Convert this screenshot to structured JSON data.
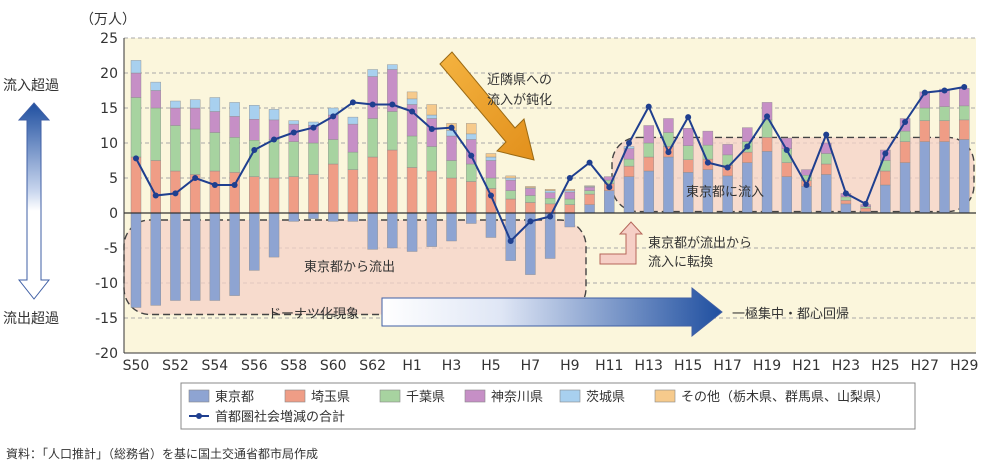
{
  "chart_data": {
    "type": "bar",
    "subtype": "stacked-bar-with-line",
    "unit_label": "（万人）",
    "ylim": [
      -20,
      25
    ],
    "yticks": [
      25,
      20,
      15,
      10,
      5,
      0,
      -5,
      -10,
      -15,
      -20
    ],
    "grid": true,
    "legend_position": "bottom",
    "categories": [
      "S50",
      "S51",
      "S52",
      "S53",
      "S54",
      "S55",
      "S56",
      "S57",
      "S58",
      "S59",
      "S60",
      "S61",
      "S62",
      "S63",
      "H1",
      "H2",
      "H3",
      "H4",
      "H5",
      "H6",
      "H7",
      "H8",
      "H9",
      "H10",
      "H11",
      "H12",
      "H13",
      "H14",
      "H15",
      "H16",
      "H17",
      "H18",
      "H19",
      "H20",
      "H21",
      "H22",
      "H23",
      "H24",
      "H25",
      "H26",
      "H27",
      "H28",
      "H29"
    ],
    "tick_labels": [
      "S50",
      "",
      "S52",
      "",
      "S54",
      "",
      "S56",
      "",
      "S58",
      "",
      "S60",
      "",
      "S62",
      "",
      "H1",
      "",
      "H3",
      "",
      "H5",
      "",
      "H7",
      "",
      "H9",
      "",
      "H11",
      "",
      "H13",
      "",
      "H15",
      "",
      "H17",
      "",
      "H19",
      "",
      "H21",
      "",
      "H23",
      "",
      "H25",
      "",
      "H27",
      "",
      "H29"
    ],
    "series": [
      {
        "name": "東京都",
        "color": "#8ea4d2",
        "values": [
          -13.5,
          -13.2,
          -12.5,
          -12.5,
          -12.5,
          -11.8,
          -8.2,
          -6.3,
          -1.2,
          -0.8,
          -1.2,
          -1.2,
          -5.2,
          -5.0,
          -5.5,
          -4.8,
          -4.0,
          -1.5,
          -3.5,
          -6.8,
          -8.8,
          -6.5,
          -2.0,
          1.2,
          3.2,
          5.2,
          6.0,
          8.0,
          5.8,
          6.2,
          5.3,
          7.2,
          8.8,
          5.2,
          3.8,
          5.5,
          1.3,
          0.2,
          4.0,
          7.2,
          10.2,
          10.2,
          10.5
        ]
      },
      {
        "name": "埼玉県",
        "color": "#ef9d86",
        "values": [
          8.0,
          7.5,
          6.0,
          5.5,
          6.0,
          5.8,
          5.2,
          5.0,
          5.2,
          5.5,
          7.0,
          6.2,
          8.0,
          9.0,
          6.5,
          6.0,
          5.0,
          4.5,
          3.5,
          2.0,
          1.5,
          1.3,
          1.2,
          1.5,
          1.0,
          1.5,
          2.0,
          1.5,
          1.8,
          1.5,
          1.5,
          1.5,
          2.0,
          2.0,
          0.8,
          1.5,
          0.5,
          0.5,
          2.0,
          3.0,
          3.0,
          3.0,
          2.8
        ]
      },
      {
        "name": "千葉県",
        "color": "#a7d3a0",
        "values": [
          8.5,
          7.5,
          6.5,
          6.5,
          5.5,
          5.0,
          5.2,
          5.5,
          5.0,
          4.5,
          3.5,
          2.5,
          5.5,
          5.5,
          4.5,
          3.5,
          2.5,
          2.5,
          1.5,
          1.2,
          1.0,
          0.8,
          0.8,
          0.5,
          0.5,
          1.0,
          2.0,
          2.0,
          2.0,
          2.0,
          1.5,
          1.5,
          2.5,
          2.0,
          0.8,
          1.5,
          0.5,
          0.2,
          1.5,
          1.5,
          1.8,
          2.0,
          2.0
        ]
      },
      {
        "name": "神奈川県",
        "color": "#c68fc6",
        "values": [
          3.5,
          2.5,
          2.5,
          3.0,
          3.0,
          3.0,
          3.0,
          2.8,
          2.5,
          2.5,
          3.5,
          4.0,
          6.0,
          6.0,
          4.5,
          4.0,
          3.5,
          3.5,
          2.5,
          1.5,
          1.0,
          0.8,
          1.0,
          0.5,
          0.5,
          1.5,
          2.5,
          2.0,
          2.5,
          2.0,
          1.5,
          2.0,
          2.5,
          1.5,
          0.8,
          1.5,
          0.5,
          0.3,
          1.5,
          1.8,
          2.3,
          2.5,
          2.5
        ]
      },
      {
        "name": "茨城県",
        "color": "#a8d0ef",
        "values": [
          1.8,
          1.2,
          1.0,
          1.2,
          2.0,
          2.0,
          2.0,
          1.5,
          0.5,
          0.5,
          1.0,
          1.0,
          1.0,
          0.7,
          0.8,
          0.5,
          0.8,
          0.8,
          0.5,
          0.3,
          0.1,
          0.3,
          0.2,
          0.1,
          0.0,
          0.3,
          0.0,
          0.0,
          0.0,
          0.0,
          0.0,
          0.0,
          0.0,
          0.0,
          0.0,
          0.0,
          0.0,
          0.0,
          0.0,
          0.0,
          0.0,
          0.0,
          0.0
        ]
      },
      {
        "name": "その他（栃木県、群馬県、山梨県）",
        "color": "#f6ca8c",
        "values": [
          0.0,
          0.0,
          0.0,
          0.0,
          0.0,
          0.0,
          0.0,
          0.0,
          0.0,
          0.0,
          0.0,
          0.0,
          0.0,
          0.0,
          1.0,
          1.5,
          1.0,
          1.5,
          0.5,
          0.3,
          0.2,
          0.2,
          0.2,
          0.1,
          0.0,
          0.0,
          0.0,
          0.0,
          0.0,
          0.0,
          0.0,
          0.0,
          0.0,
          0.0,
          0.0,
          0.0,
          0.0,
          0.0,
          0.0,
          0.0,
          0.0,
          0.0,
          0.0
        ]
      }
    ],
    "line": {
      "name": "首都圏社会増減の合計",
      "color": "#1f3f8f",
      "values": [
        7.8,
        2.5,
        2.8,
        5.0,
        4.0,
        4.0,
        9.0,
        10.5,
        11.5,
        12.2,
        13.8,
        15.8,
        15.5,
        15.5,
        14.5,
        12.0,
        12.2,
        8.2,
        2.5,
        -4.0,
        -1.2,
        -0.5,
        5.0,
        7.2,
        3.7,
        10.0,
        15.2,
        8.7,
        13.7,
        7.2,
        6.5,
        9.5,
        13.8,
        9.0,
        4.0,
        11.2,
        2.8,
        1.3,
        8.5,
        13.0,
        17.2,
        17.5,
        18.0
      ]
    },
    "annotations": {
      "inflow": "流入超過",
      "outflow": "流出超過",
      "neighbor": "近隣県への\n流入が鈍化",
      "tokyo_out": "東京都から流出",
      "tokyo_in": "東京都に流入",
      "transition": "東京都が流出から\n流入に転換",
      "donut": "ドーナツ化現象",
      "recentral": "一極集中・都心回帰"
    },
    "source": "資料：「人口推計」（総務省）を基に国土交通省都市局作成"
  },
  "colors": {
    "plot_bg": "#fbf6dc",
    "grid": "#a8a8a8",
    "axis": "#333333",
    "text": "#333333",
    "arrow_blue_top": "#1f4fa0",
    "arrow_orange": "#f0a830",
    "region_fill": "#f6d2c8",
    "dashed": "#444444"
  }
}
